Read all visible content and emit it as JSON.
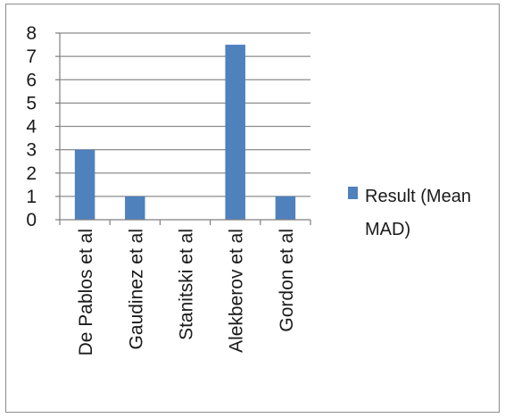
{
  "chart_data": {
    "type": "bar",
    "categories": [
      "De Pablos et al",
      "Gaudinez et al",
      "Stanitski et al",
      "Alekberov et al",
      "Gordon et al"
    ],
    "series": [
      {
        "name": "Result (Mean MAD)",
        "values": [
          3,
          1,
          0,
          7.5,
          1
        ],
        "color": "#4f81bd"
      }
    ],
    "ylim": [
      0,
      8
    ],
    "yticks": [
      0,
      1,
      2,
      3,
      4,
      5,
      6,
      7,
      8
    ],
    "grid": true,
    "legend": {
      "position": "right",
      "lines": [
        "Result (Mean",
        "MAD)"
      ]
    },
    "title": "",
    "xlabel": "",
    "ylabel": ""
  }
}
